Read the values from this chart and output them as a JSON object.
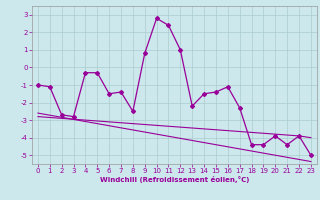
{
  "xlabel": "Windchill (Refroidissement éolien,°C)",
  "x": [
    0,
    1,
    2,
    3,
    4,
    5,
    6,
    7,
    8,
    9,
    10,
    11,
    12,
    13,
    14,
    15,
    16,
    17,
    18,
    19,
    20,
    21,
    22,
    23
  ],
  "y_main": [
    -1.0,
    -1.1,
    -2.7,
    -2.8,
    -0.3,
    -0.3,
    -1.5,
    -1.4,
    -2.5,
    0.8,
    2.8,
    2.4,
    1.0,
    -2.2,
    -1.5,
    -1.4,
    -1.1,
    -2.3,
    -4.4,
    -4.4,
    -3.9,
    -4.4,
    -3.9,
    -5.0
  ],
  "y_trend1": [
    -2.8,
    -2.85,
    -2.9,
    -2.95,
    -3.0,
    -3.05,
    -3.1,
    -3.15,
    -3.2,
    -3.25,
    -3.3,
    -3.35,
    -3.4,
    -3.45,
    -3.5,
    -3.55,
    -3.6,
    -3.65,
    -3.7,
    -3.75,
    -3.8,
    -3.85,
    -3.9,
    -4.0
  ],
  "y_trend2": [
    -2.6,
    -2.72,
    -2.84,
    -2.96,
    -3.08,
    -3.2,
    -3.32,
    -3.44,
    -3.56,
    -3.68,
    -3.8,
    -3.92,
    -4.04,
    -4.16,
    -4.28,
    -4.4,
    -4.52,
    -4.64,
    -4.76,
    -4.88,
    -5.0,
    -5.12,
    -5.24,
    -5.36
  ],
  "ylim": [
    -5.5,
    3.5
  ],
  "yticks": [
    -5,
    -4,
    -3,
    -2,
    -1,
    0,
    1,
    2,
    3
  ],
  "line_color": "#990099",
  "bg_color": "#cce8ec",
  "grid_color": "#aacccc"
}
